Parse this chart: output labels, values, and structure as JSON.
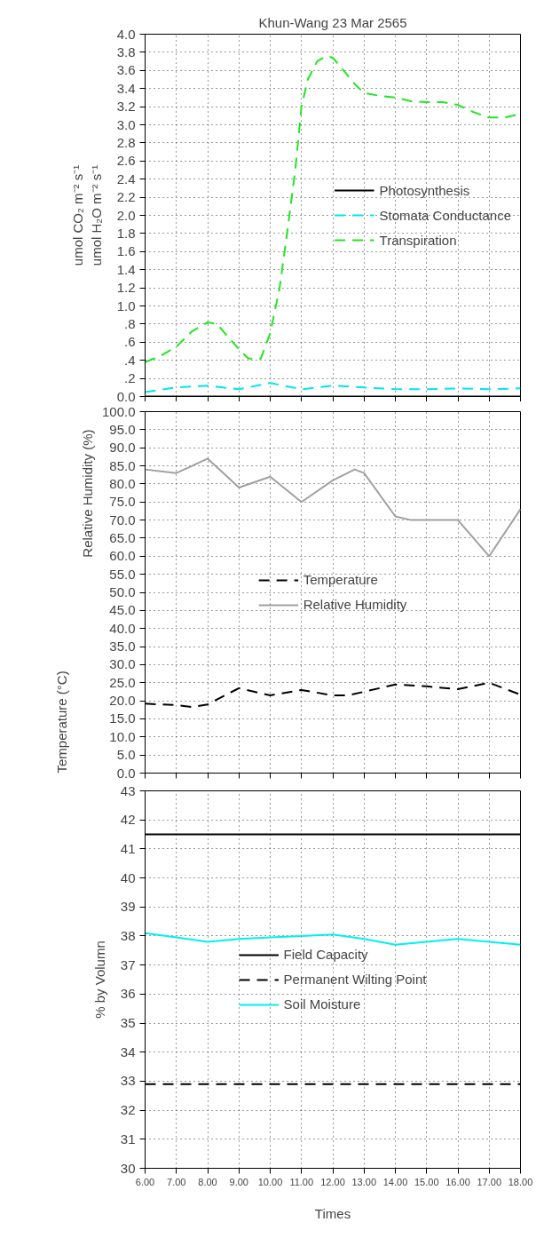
{
  "chart_data": [
    {
      "type": "line",
      "title": "Khun-Wang 23 Mar 2565",
      "ylabel": "umol CO₂ m⁻² s⁻¹\numol H₂O m⁻² s⁻¹",
      "xlim": [
        6,
        18
      ],
      "xticks": [
        {
          "value": 6,
          "label": null
        },
        {
          "value": 7,
          "label": null
        },
        {
          "value": 8,
          "label": null
        },
        {
          "value": 9,
          "label": null
        },
        {
          "value": 10,
          "label": null
        },
        {
          "value": 11,
          "label": null
        },
        {
          "value": 12,
          "label": null
        },
        {
          "value": 13,
          "label": null
        },
        {
          "value": 14,
          "label": null
        },
        {
          "value": 15,
          "label": null
        },
        {
          "value": 16,
          "label": null
        },
        {
          "value": 17,
          "label": null
        },
        {
          "value": 18,
          "label": null
        }
      ],
      "ylim": [
        0,
        4
      ],
      "yticks": [
        {
          "value": 0,
          "label": "0.0"
        },
        {
          "value": 0.2,
          "label": ".2"
        },
        {
          "value": 0.4,
          "label": ".4"
        },
        {
          "value": 0.6,
          "label": ".6"
        },
        {
          "value": 0.8,
          "label": ".8"
        },
        {
          "value": 1,
          "label": "1.0"
        },
        {
          "value": 1.2,
          "label": "1.2"
        },
        {
          "value": 1.4,
          "label": "1.4"
        },
        {
          "value": 1.6,
          "label": "1.6"
        },
        {
          "value": 1.8,
          "label": "1.8"
        },
        {
          "value": 2,
          "label": "2.0"
        },
        {
          "value": 2.2,
          "label": "2.2"
        },
        {
          "value": 2.4,
          "label": "2.4"
        },
        {
          "value": 2.6,
          "label": "2.6"
        },
        {
          "value": 2.8,
          "label": "2.8"
        },
        {
          "value": 3,
          "label": "3.0"
        },
        {
          "value": 3.2,
          "label": "3.2"
        },
        {
          "value": 3.4,
          "label": "3.4"
        },
        {
          "value": 3.6,
          "label": "3.6"
        },
        {
          "value": 3.8,
          "label": "3.8"
        },
        {
          "value": 4,
          "label": "4.0"
        }
      ],
      "tick_labels": "y",
      "grid": true,
      "legend": "right",
      "series": [
        {
          "name": "Photosynthesis",
          "color": "#000000",
          "line_style": "solid",
          "x": [
            6,
            18
          ],
          "values": [
            0,
            0
          ]
        },
        {
          "name": "Stomata Conductance",
          "color": "#00e5ee",
          "line_style": "dashed",
          "x": [
            6,
            7,
            8,
            9,
            10,
            11,
            12,
            13,
            14,
            15,
            16,
            17,
            18
          ],
          "values": [
            0.05,
            0.1,
            0.12,
            0.08,
            0.15,
            0.08,
            0.12,
            0.1,
            0.08,
            0.08,
            0.09,
            0.08,
            0.09
          ]
        },
        {
          "name": "Transpiration",
          "color": "#22e622",
          "line_style": "dashed",
          "x": [
            6,
            6.5,
            7,
            7.5,
            8,
            8.3,
            8.5,
            9,
            9.3,
            9.7,
            10,
            10.3,
            10.5,
            10.8,
            11,
            11.2,
            11.5,
            11.8,
            12,
            12.3,
            12.7,
            13,
            13.5,
            14,
            14.5,
            15,
            15.5,
            16,
            16.5,
            17,
            17.5,
            18
          ],
          "values": [
            0.38,
            0.45,
            0.55,
            0.72,
            0.82,
            0.8,
            0.72,
            0.52,
            0.42,
            0.42,
            0.7,
            1.2,
            1.7,
            2.5,
            3.2,
            3.5,
            3.7,
            3.76,
            3.74,
            3.62,
            3.45,
            3.35,
            3.32,
            3.3,
            3.26,
            3.25,
            3.25,
            3.22,
            3.14,
            3.08,
            3.08,
            3.12
          ]
        }
      ]
    },
    {
      "type": "line",
      "ylabel": "Relative Humidity (%)",
      "annotations": [
        "Temperature (°C)"
      ],
      "xlim": [
        6,
        18
      ],
      "xticks": [
        {
          "value": 6,
          "label": null
        },
        {
          "value": 7,
          "label": null
        },
        {
          "value": 8,
          "label": null
        },
        {
          "value": 9,
          "label": null
        },
        {
          "value": 10,
          "label": null
        },
        {
          "value": 11,
          "label": null
        },
        {
          "value": 12,
          "label": null
        },
        {
          "value": 13,
          "label": null
        },
        {
          "value": 14,
          "label": null
        },
        {
          "value": 15,
          "label": null
        },
        {
          "value": 16,
          "label": null
        },
        {
          "value": 17,
          "label": null
        },
        {
          "value": 18,
          "label": null
        }
      ],
      "ylim": [
        0,
        100
      ],
      "yticks": [
        {
          "value": 0,
          "label": "0.0"
        },
        {
          "value": 5,
          "label": "5.0"
        },
        {
          "value": 10,
          "label": "10.0"
        },
        {
          "value": 15,
          "label": "15.0"
        },
        {
          "value": 20,
          "label": "20.0"
        },
        {
          "value": 25,
          "label": "25.0"
        },
        {
          "value": 30,
          "label": "30.0"
        },
        {
          "value": 35,
          "label": "35.0"
        },
        {
          "value": 40,
          "label": "40.0"
        },
        {
          "value": 45,
          "label": "45.0"
        },
        {
          "value": 50,
          "label": "50.0"
        },
        {
          "value": 55,
          "label": "55.0"
        },
        {
          "value": 60,
          "label": "60.0"
        },
        {
          "value": 65,
          "label": "65.0"
        },
        {
          "value": 70,
          "label": "70.0"
        },
        {
          "value": 75,
          "label": "75.0"
        },
        {
          "value": 80,
          "label": "80.0"
        },
        {
          "value": 85,
          "label": "85.0"
        },
        {
          "value": 90,
          "label": "90.0"
        },
        {
          "value": 95,
          "label": "95.0"
        },
        {
          "value": 100,
          "label": "100.0"
        }
      ],
      "tick_labels": "y",
      "grid": true,
      "legend": "center",
      "series": [
        {
          "name": "Temperature",
          "color": "#000000",
          "line_style": "dashed",
          "x": [
            6,
            7,
            7.5,
            8,
            9,
            10,
            11,
            12,
            12.5,
            13,
            14,
            15,
            16,
            17,
            18
          ],
          "values": [
            19.2,
            18.8,
            18.3,
            19,
            23.5,
            21.5,
            23,
            21.5,
            21.5,
            22.5,
            24.5,
            24,
            23.2,
            25,
            21.7
          ]
        },
        {
          "name": "Relative Humidity",
          "color": "#a0a0a0",
          "line_style": "solid",
          "x": [
            6,
            7,
            7.5,
            8,
            9,
            10,
            11,
            12,
            12.7,
            13,
            14,
            14.5,
            15,
            16,
            17,
            18
          ],
          "values": [
            84,
            83,
            85,
            87,
            79,
            82,
            75,
            81,
            84,
            83,
            71,
            70,
            70,
            70,
            60,
            73
          ]
        }
      ]
    },
    {
      "type": "line",
      "ylabel": "% by Volumn",
      "xlabel": "Times",
      "xlim": [
        6,
        18
      ],
      "xticks": [
        {
          "value": 6,
          "label": "6.00"
        },
        {
          "value": 7,
          "label": "7.00"
        },
        {
          "value": 8,
          "label": "8.00"
        },
        {
          "value": 9,
          "label": "9.00"
        },
        {
          "value": 10,
          "label": "10.00"
        },
        {
          "value": 11,
          "label": "11.00"
        },
        {
          "value": 12,
          "label": "12.00"
        },
        {
          "value": 13,
          "label": "13.00"
        },
        {
          "value": 14,
          "label": "14.00"
        },
        {
          "value": 15,
          "label": "15.00"
        },
        {
          "value": 16,
          "label": "16.00"
        },
        {
          "value": 17,
          "label": "17.00"
        },
        {
          "value": 18,
          "label": "18.00"
        }
      ],
      "ylim": [
        30,
        43
      ],
      "yticks": [
        30,
        31,
        32,
        33,
        34,
        35,
        36,
        37,
        38,
        39,
        40,
        41,
        42,
        43
      ],
      "grid": true,
      "legend": "center",
      "ref_lines": [
        {
          "axis": "y",
          "value": 41.5,
          "label": "Field Capacity",
          "color": "#000000",
          "line_style": "solid"
        },
        {
          "axis": "y",
          "value": 32.9,
          "label": "Permanent Wilting Point",
          "color": "#000000",
          "line_style": "dashed"
        }
      ],
      "series": [
        {
          "name": "Soil Moisture",
          "color": "#00f0f0",
          "line_style": "solid",
          "x": [
            6,
            7,
            8,
            9,
            10,
            11,
            12,
            13,
            14,
            15,
            16,
            17,
            18
          ],
          "values": [
            38.1,
            37.95,
            37.8,
            37.9,
            37.95,
            38.0,
            38.05,
            37.9,
            37.7,
            37.8,
            37.9,
            37.8,
            37.7
          ]
        }
      ]
    }
  ]
}
